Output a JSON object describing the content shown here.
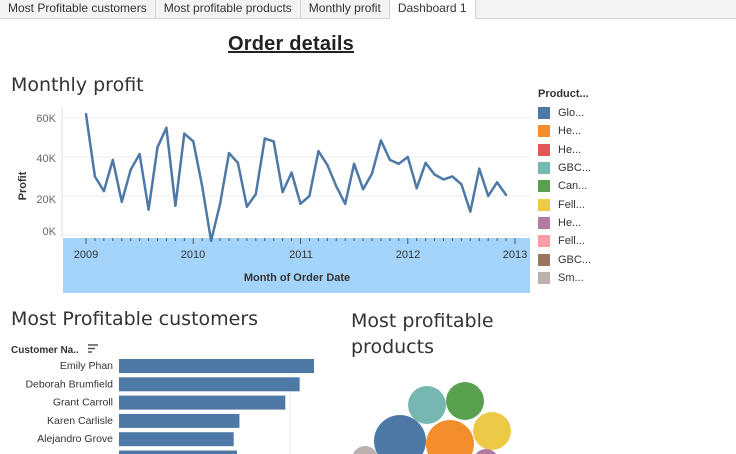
{
  "tabs": [
    {
      "label": "Most Profitable customers"
    },
    {
      "label": "Most profitable products"
    },
    {
      "label": "Monthly profit"
    },
    {
      "label": "Dashboard 1",
      "active": true
    }
  ],
  "dashboard": {
    "title": "Order details "
  },
  "monthly_profit": {
    "title": "Monthly profit",
    "ylabel": "Profit",
    "xlabel": "Month of Order Date",
    "y_ticks": [
      "60K",
      "40K",
      "20K",
      "0K"
    ],
    "x_ticks": [
      "2009",
      "2010",
      "2011",
      "2012",
      "2013"
    ],
    "header_band_color": "#a5d4fb",
    "line_color": "#4e79a7"
  },
  "legend": {
    "title": "Product...",
    "items": [
      {
        "label": "Glo...",
        "color": "#4e79a7"
      },
      {
        "label": "He...",
        "color": "#f28e2b"
      },
      {
        "label": "He...",
        "color": "#e15759"
      },
      {
        "label": "GBC...",
        "color": "#76b7b2"
      },
      {
        "label": "Can...",
        "color": "#59a14f"
      },
      {
        "label": "Fell...",
        "color": "#edc948"
      },
      {
        "label": "He...",
        "color": "#b07aa1"
      },
      {
        "label": "Fell...",
        "color": "#ff9da7"
      },
      {
        "label": "GBC...",
        "color": "#9c755f"
      },
      {
        "label": "Sm...",
        "color": "#bab0ac"
      }
    ]
  },
  "customers": {
    "title": "Most Profitable customers",
    "column_header": "Customer Na..",
    "sort_icon": "sort-descending-icon",
    "bar_color": "#4e79a7"
  },
  "products": {
    "title_line1": "Most profitable",
    "title_line2": "products"
  },
  "chart_data": [
    {
      "type": "line",
      "title": "Monthly profit",
      "xlabel": "Month of Order Date",
      "ylabel": "Profit",
      "ylim": [
        -3000,
        68000
      ],
      "x_range": [
        "2009-01",
        "2013-01"
      ],
      "y_ticks": [
        0,
        20000,
        40000,
        60000
      ],
      "grid": true,
      "series": [
        {
          "x": [
            "2009-01",
            "2009-02",
            "2009-03",
            "2009-04",
            "2009-05",
            "2009-06",
            "2009-07",
            "2009-08",
            "2009-09",
            "2009-10",
            "2009-11",
            "2009-12",
            "2010-01",
            "2010-02",
            "2010-03",
            "2010-04",
            "2010-05",
            "2010-06",
            "2010-07",
            "2010-08",
            "2010-09",
            "2010-10",
            "2010-11",
            "2010-12",
            "2011-01",
            "2011-02",
            "2011-03",
            "2011-04",
            "2011-05",
            "2011-06",
            "2011-07",
            "2011-08",
            "2011-09",
            "2011-10",
            "2011-11",
            "2011-12",
            "2012-01",
            "2012-02",
            "2012-03",
            "2012-04",
            "2012-05",
            "2012-06",
            "2012-07",
            "2012-08",
            "2012-09",
            "2012-10",
            "2012-11",
            "2012-12"
          ],
          "values": [
            62000,
            30000,
            22500,
            38500,
            17000,
            33500,
            41500,
            13000,
            45000,
            55000,
            15000,
            52000,
            48000,
            25000,
            -3000,
            16000,
            42000,
            37000,
            14500,
            21000,
            49500,
            48000,
            22000,
            32000,
            16000,
            20000,
            43000,
            36000,
            25000,
            16000,
            36500,
            23500,
            31500,
            48500,
            38500,
            36500,
            40000,
            24000,
            37000,
            31000,
            28500,
            30000,
            26000,
            12000,
            34000,
            20000,
            27000,
            20500
          ]
        }
      ]
    },
    {
      "type": "bar",
      "title": "Most Profitable customers",
      "categories": [
        "Emily Phan",
        "Deborah Brumfield",
        "Grant Carroll",
        "Karen Carlisle",
        "Alejandro Grove"
      ],
      "values": [
        34000,
        31500,
        29000,
        21000,
        20000
      ],
      "orientation": "horizontal"
    },
    {
      "type": "bubble",
      "title": "Most profitable products",
      "series": [
        {
          "color": "#4e79a7",
          "value": 100
        },
        {
          "color": "#f28e2b",
          "value": 90
        },
        {
          "color": "#76b7b2",
          "value": 60
        },
        {
          "color": "#59a14f",
          "value": 58
        },
        {
          "color": "#edc948",
          "value": 58
        },
        {
          "color": "#bab0ac",
          "value": 30
        },
        {
          "color": "#b07aa1",
          "value": 30
        }
      ]
    }
  ]
}
